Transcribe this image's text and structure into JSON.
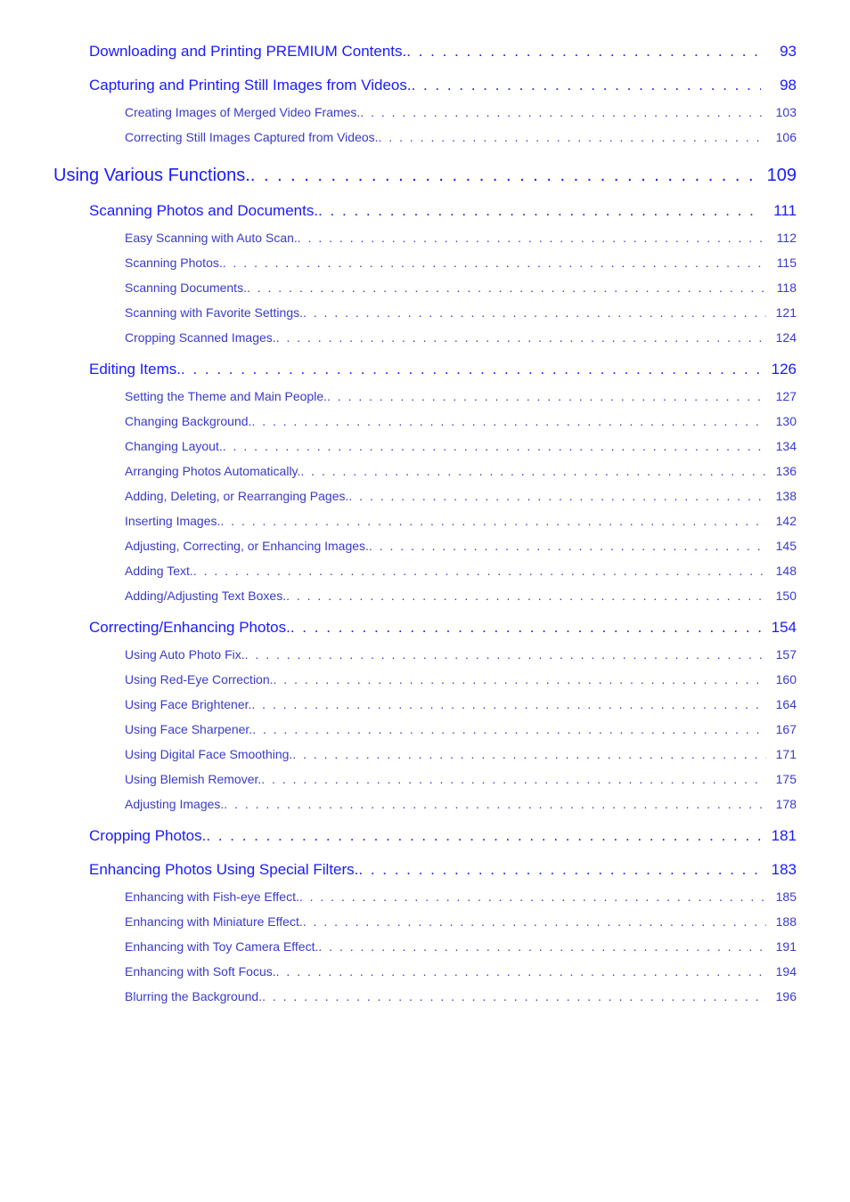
{
  "dots": ". . . . . . . . . . . . . . . . . . . . . . . . . . . . . . . . . . . . . . . . . . . . . . . . . . . . . . . . . . . . . . . . . . . . . . . . . . . . . . . . . . . . . . . . . . . . . . . . . . . . . . . . . . . . . . . . . . . . . . . . . . . . . . . . . . . . . . . . . . . . . . . . . . . . . . . . . . . . . . . . . . . .",
  "colors": {
    "link": "#1a1aff",
    "sublink": "#3a3acc",
    "background": "#ffffff"
  },
  "entries": [
    {
      "level": 2,
      "label": "Downloading and Printing PREMIUM Contents.",
      "page": "93",
      "first": true
    },
    {
      "level": 2,
      "label": "Capturing and Printing Still Images from Videos.",
      "page": "98"
    },
    {
      "level": 3,
      "label": "Creating Images of Merged Video Frames.",
      "page": "103"
    },
    {
      "level": 3,
      "label": "Correcting Still Images Captured from Videos.",
      "page": "106"
    },
    {
      "level": 1,
      "label": "Using Various Functions.",
      "page": "109"
    },
    {
      "level": 2,
      "label": "Scanning Photos and Documents.",
      "page": "111"
    },
    {
      "level": 3,
      "label": "Easy Scanning with Auto Scan.",
      "page": "112"
    },
    {
      "level": 3,
      "label": "Scanning Photos.",
      "page": "115"
    },
    {
      "level": 3,
      "label": "Scanning Documents.",
      "page": "118"
    },
    {
      "level": 3,
      "label": "Scanning with Favorite Settings.",
      "page": "121"
    },
    {
      "level": 3,
      "label": "Cropping Scanned Images.",
      "page": "124"
    },
    {
      "level": 2,
      "label": "Editing Items.",
      "page": "126"
    },
    {
      "level": 3,
      "label": "Setting the Theme and Main People.",
      "page": "127"
    },
    {
      "level": 3,
      "label": "Changing Background.",
      "page": "130"
    },
    {
      "level": 3,
      "label": "Changing Layout.",
      "page": "134"
    },
    {
      "level": 3,
      "label": "Arranging Photos Automatically.",
      "page": "136"
    },
    {
      "level": 3,
      "label": "Adding, Deleting, or Rearranging Pages.",
      "page": "138"
    },
    {
      "level": 3,
      "label": "Inserting Images.",
      "page": "142"
    },
    {
      "level": 3,
      "label": "Adjusting, Correcting, or Enhancing Images.",
      "page": "145"
    },
    {
      "level": 3,
      "label": "Adding Text.",
      "page": "148"
    },
    {
      "level": 3,
      "label": "Adding/Adjusting Text Boxes.",
      "page": "150"
    },
    {
      "level": 2,
      "label": "Correcting/Enhancing Photos.",
      "page": "154"
    },
    {
      "level": 3,
      "label": "Using Auto Photo Fix.",
      "page": "157"
    },
    {
      "level": 3,
      "label": "Using Red-Eye Correction.",
      "page": "160"
    },
    {
      "level": 3,
      "label": "Using Face Brightener.",
      "page": "164"
    },
    {
      "level": 3,
      "label": "Using Face Sharpener.",
      "page": "167"
    },
    {
      "level": 3,
      "label": "Using Digital Face Smoothing.",
      "page": "171"
    },
    {
      "level": 3,
      "label": "Using Blemish Remover.",
      "page": "175"
    },
    {
      "level": 3,
      "label": "Adjusting Images.",
      "page": "178"
    },
    {
      "level": 2,
      "label": "Cropping Photos.",
      "page": "181"
    },
    {
      "level": 2,
      "label": "Enhancing Photos Using Special Filters.",
      "page": "183"
    },
    {
      "level": 3,
      "label": "Enhancing with Fish-eye Effect.",
      "page": "185"
    },
    {
      "level": 3,
      "label": "Enhancing with Miniature Effect.",
      "page": "188"
    },
    {
      "level": 3,
      "label": "Enhancing with Toy Camera Effect.",
      "page": "191"
    },
    {
      "level": 3,
      "label": "Enhancing with Soft Focus.",
      "page": "194"
    },
    {
      "level": 3,
      "label": "Blurring the Background.",
      "page": "196"
    }
  ]
}
